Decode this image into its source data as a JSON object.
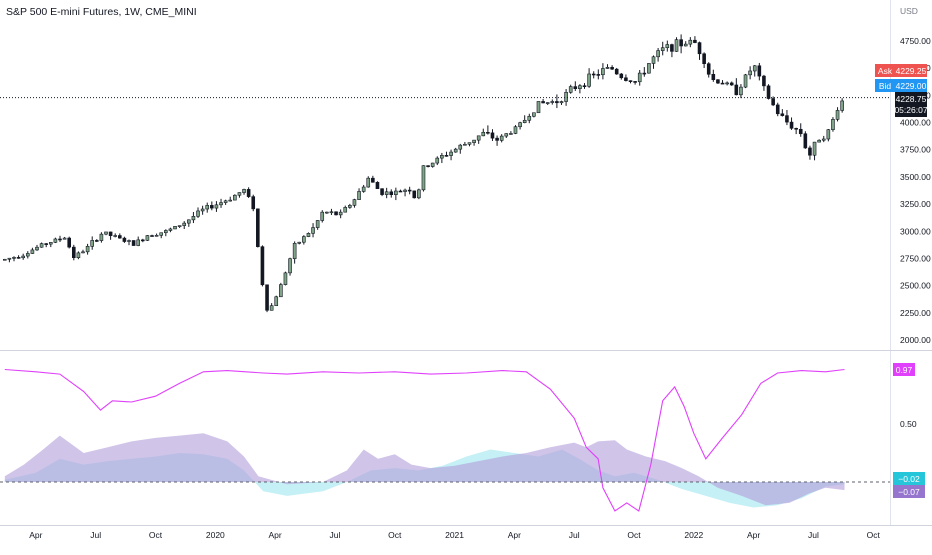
{
  "header": {
    "title": "S&P 500 E-mini Futures, 1W, CME_MINI"
  },
  "price_axis": {
    "currency": "USD",
    "ticks": [
      "4750.00",
      "4500.00",
      "4250.00",
      "4000.00",
      "3750.00",
      "3500.00",
      "3250.00",
      "3000.00",
      "2750.00",
      "2500.00",
      "2250.00",
      "2000.00"
    ]
  },
  "quote": {
    "ask_label": "Ask",
    "ask_value": "4229.25",
    "bid_label": "Bid",
    "bid_value": "4229.00",
    "last_value": "4228.75",
    "countdown": "05:26:07"
  },
  "indicator_axis": {
    "ticks": [
      "0.50"
    ],
    "label_top": "0.97",
    "label_mid_a": "−0.02",
    "label_mid_b": "−0.07"
  },
  "time_axis": {
    "labels": [
      "Apr",
      "Jul",
      "Oct",
      "2020",
      "Apr",
      "Jul",
      "Oct",
      "2021",
      "Apr",
      "Jul",
      "Oct",
      "2022",
      "Apr",
      "Jul",
      "Oct"
    ]
  },
  "colors": {
    "up": "#7fa487",
    "down": "#131722",
    "magenta": "#e040fb",
    "purple": "#b39ddb",
    "cyan": "#b2ebf2",
    "blue": "#90caf9",
    "ask": "#ef5350",
    "bid": "#2196f3",
    "label_dark": "#131722"
  },
  "chart_data": [
    {
      "type": "candlestick",
      "interval": "1W",
      "x_range": [
        "2019-02",
        "2022-10"
      ],
      "ylim": [
        1950,
        4900
      ],
      "series": [
        {
          "name": "ES",
          "values": [
            [
              2019.12,
              2740
            ],
            [
              2019.2,
              2790
            ],
            [
              2019.28,
              2880
            ],
            [
              2019.37,
              2945
            ],
            [
              2019.41,
              2760
            ],
            [
              2019.46,
              2840
            ],
            [
              2019.53,
              2990
            ],
            [
              2019.6,
              2930
            ],
            [
              2019.66,
              2880
            ],
            [
              2019.72,
              2970
            ],
            [
              2019.8,
              3000
            ],
            [
              2019.87,
              3080
            ],
            [
              2019.95,
              3200
            ],
            [
              2020.05,
              3290
            ],
            [
              2020.12,
              3380
            ],
            [
              2020.16,
              3220
            ],
            [
              2020.19,
              2600
            ],
            [
              2020.22,
              2240
            ],
            [
              2020.27,
              2480
            ],
            [
              2020.33,
              2860
            ],
            [
              2020.41,
              3030
            ],
            [
              2020.45,
              3180
            ],
            [
              2020.52,
              3150
            ],
            [
              2020.58,
              3290
            ],
            [
              2020.64,
              3490
            ],
            [
              2020.69,
              3360
            ],
            [
              2020.75,
              3350
            ],
            [
              2020.81,
              3400
            ],
            [
              2020.84,
              3280
            ],
            [
              2020.87,
              3580
            ],
            [
              2020.95,
              3690
            ],
            [
              2021.05,
              3810
            ],
            [
              2021.12,
              3900
            ],
            [
              2021.18,
              3840
            ],
            [
              2021.27,
              3970
            ],
            [
              2021.35,
              4170
            ],
            [
              2021.43,
              4200
            ],
            [
              2021.5,
              4320
            ],
            [
              2021.58,
              4430
            ],
            [
              2021.65,
              4510
            ],
            [
              2021.7,
              4420
            ],
            [
              2021.76,
              4370
            ],
            [
              2021.82,
              4570
            ],
            [
              2021.88,
              4690
            ],
            [
              2021.94,
              4720
            ],
            [
              2022.0,
              4750
            ],
            [
              2022.04,
              4600
            ],
            [
              2022.07,
              4400
            ],
            [
              2022.12,
              4370
            ],
            [
              2022.18,
              4290
            ],
            [
              2022.25,
              4530
            ],
            [
              2022.3,
              4270
            ],
            [
              2022.35,
              4090
            ],
            [
              2022.4,
              3980
            ],
            [
              2022.45,
              3900
            ],
            [
              2022.48,
              3680
            ],
            [
              2022.52,
              3860
            ],
            [
              2022.56,
              3900
            ],
            [
              2022.6,
              4130
            ],
            [
              2022.63,
              4230
            ]
          ]
        }
      ]
    },
    {
      "type": "area",
      "ylim": [
        -0.3,
        1.1
      ],
      "x_range": [
        "2019-02",
        "2022-10"
      ],
      "series": [
        {
          "name": "magenta-line",
          "style": "line",
          "values": [
            [
              2019.12,
              0.97
            ],
            [
              2019.25,
              0.95
            ],
            [
              2019.35,
              0.93
            ],
            [
              2019.45,
              0.78
            ],
            [
              2019.52,
              0.62
            ],
            [
              2019.57,
              0.7
            ],
            [
              2019.65,
              0.69
            ],
            [
              2019.75,
              0.74
            ],
            [
              2019.85,
              0.85
            ],
            [
              2019.95,
              0.95
            ],
            [
              2020.05,
              0.96
            ],
            [
              2020.2,
              0.94
            ],
            [
              2020.3,
              0.93
            ],
            [
              2020.45,
              0.95
            ],
            [
              2020.6,
              0.94
            ],
            [
              2020.75,
              0.95
            ],
            [
              2020.9,
              0.93
            ],
            [
              2021.05,
              0.94
            ],
            [
              2021.2,
              0.96
            ],
            [
              2021.3,
              0.95
            ],
            [
              2021.4,
              0.8
            ],
            [
              2021.5,
              0.55
            ],
            [
              2021.55,
              0.3
            ],
            [
              2021.6,
              0.2
            ],
            [
              2021.62,
              -0.05
            ],
            [
              2021.67,
              -0.25
            ],
            [
              2021.72,
              -0.18
            ],
            [
              2021.77,
              -0.25
            ],
            [
              2021.82,
              0.15
            ],
            [
              2021.87,
              0.7
            ],
            [
              2021.92,
              0.82
            ],
            [
              2021.96,
              0.65
            ],
            [
              2022.0,
              0.42
            ],
            [
              2022.05,
              0.2
            ],
            [
              2022.12,
              0.38
            ],
            [
              2022.2,
              0.58
            ],
            [
              2022.28,
              0.85
            ],
            [
              2022.35,
              0.94
            ],
            [
              2022.45,
              0.96
            ],
            [
              2022.55,
              0.95
            ],
            [
              2022.63,
              0.97
            ]
          ]
        },
        {
          "name": "purple-area",
          "style": "area",
          "values": [
            [
              2019.12,
              0.05
            ],
            [
              2019.2,
              0.15
            ],
            [
              2019.28,
              0.28
            ],
            [
              2019.35,
              0.4
            ],
            [
              2019.45,
              0.25
            ],
            [
              2019.55,
              0.3
            ],
            [
              2019.65,
              0.35
            ],
            [
              2019.75,
              0.38
            ],
            [
              2019.85,
              0.4
            ],
            [
              2019.95,
              0.42
            ],
            [
              2020.05,
              0.35
            ],
            [
              2020.12,
              0.22
            ],
            [
              2020.18,
              0.05
            ],
            [
              2020.3,
              -0.02
            ],
            [
              2020.45,
              0.0
            ],
            [
              2020.55,
              0.1
            ],
            [
              2020.62,
              0.28
            ],
            [
              2020.68,
              0.2
            ],
            [
              2020.75,
              0.24
            ],
            [
              2020.82,
              0.15
            ],
            [
              2020.9,
              0.12
            ],
            [
              2021.0,
              0.14
            ],
            [
              2021.1,
              0.18
            ],
            [
              2021.2,
              0.22
            ],
            [
              2021.3,
              0.25
            ],
            [
              2021.4,
              0.3
            ],
            [
              2021.5,
              0.34
            ],
            [
              2021.55,
              0.3
            ],
            [
              2021.6,
              0.35
            ],
            [
              2021.67,
              0.36
            ],
            [
              2021.72,
              0.28
            ],
            [
              2021.8,
              0.22
            ],
            [
              2021.88,
              0.18
            ],
            [
              2021.95,
              0.12
            ],
            [
              2022.02,
              0.05
            ],
            [
              2022.1,
              -0.05
            ],
            [
              2022.2,
              -0.12
            ],
            [
              2022.3,
              -0.2
            ],
            [
              2022.4,
              -0.18
            ],
            [
              2022.48,
              -0.1
            ],
            [
              2022.55,
              -0.05
            ],
            [
              2022.63,
              -0.07
            ]
          ]
        },
        {
          "name": "cyan-area",
          "style": "area",
          "values": [
            [
              2019.12,
              0.02
            ],
            [
              2019.25,
              0.08
            ],
            [
              2019.35,
              0.2
            ],
            [
              2019.45,
              0.15
            ],
            [
              2019.55,
              0.18
            ],
            [
              2019.65,
              0.2
            ],
            [
              2019.75,
              0.22
            ],
            [
              2019.85,
              0.25
            ],
            [
              2019.95,
              0.24
            ],
            [
              2020.05,
              0.2
            ],
            [
              2020.12,
              0.1
            ],
            [
              2020.2,
              -0.08
            ],
            [
              2020.3,
              -0.12
            ],
            [
              2020.45,
              -0.08
            ],
            [
              2020.55,
              0.0
            ],
            [
              2020.65,
              0.1
            ],
            [
              2020.75,
              0.12
            ],
            [
              2020.85,
              0.1
            ],
            [
              2020.95,
              0.14
            ],
            [
              2021.05,
              0.22
            ],
            [
              2021.15,
              0.28
            ],
            [
              2021.25,
              0.25
            ],
            [
              2021.35,
              0.22
            ],
            [
              2021.45,
              0.28
            ],
            [
              2021.52,
              0.2
            ],
            [
              2021.6,
              0.1
            ],
            [
              2021.67,
              0.05
            ],
            [
              2021.75,
              0.08
            ],
            [
              2021.85,
              0.02
            ],
            [
              2021.95,
              -0.06
            ],
            [
              2022.05,
              -0.12
            ],
            [
              2022.15,
              -0.18
            ],
            [
              2022.25,
              -0.22
            ],
            [
              2022.35,
              -0.2
            ],
            [
              2022.45,
              -0.14
            ],
            [
              2022.55,
              -0.04
            ],
            [
              2022.63,
              -0.02
            ]
          ]
        }
      ]
    }
  ]
}
